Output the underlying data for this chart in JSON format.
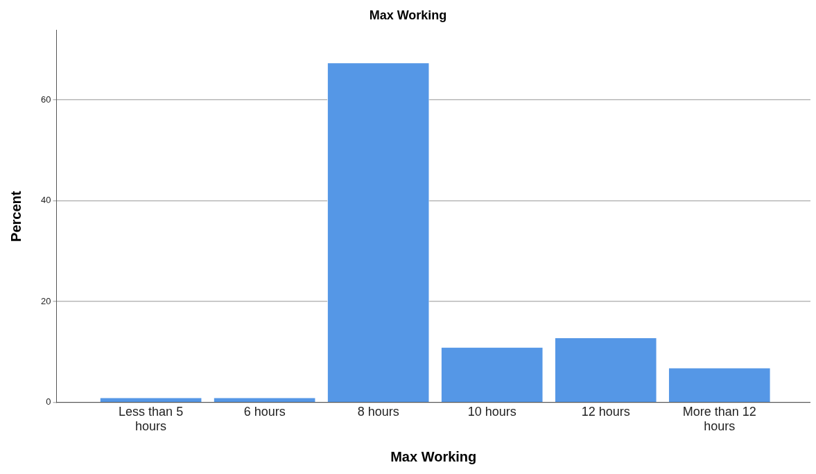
{
  "chart_data": {
    "type": "bar",
    "title": "Max Working",
    "xlabel": "Max Working",
    "ylabel": "Percent",
    "categories": [
      "Less than 5 hours",
      "6 hours",
      "8 hours",
      "10 hours",
      "12 hours",
      "More than 12 hours"
    ],
    "values": [
      1.0,
      1.0,
      67.4,
      11.0,
      12.9,
      6.9
    ],
    "color": "#5597e6",
    "ylim": [
      0,
      73.8
    ],
    "yticks": [
      0,
      20,
      40,
      60
    ],
    "grid": "y",
    "legend": false
  }
}
